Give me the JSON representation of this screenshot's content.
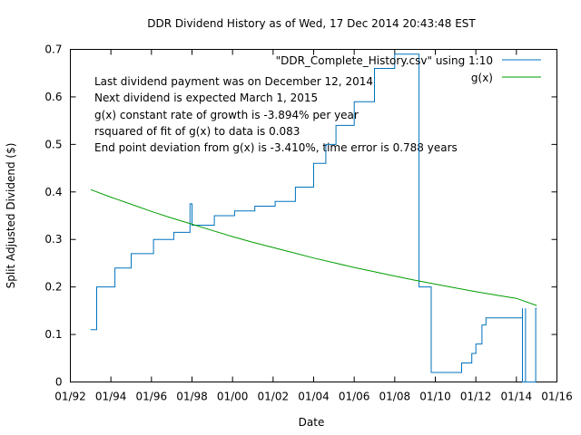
{
  "chart_data": {
    "type": "line",
    "title": "DDR Dividend History as of Wed, 17 Dec 2014 20:43:48 EST",
    "xlabel": "Date",
    "ylabel": "Split Adjusted Dividend ($)",
    "xlim": [
      1992.0,
      2016.0
    ],
    "ylim": [
      0,
      0.7
    ],
    "grid": false,
    "legend_placement": "top-right",
    "x_ticks": [
      {
        "value": 1992,
        "label": "01/92"
      },
      {
        "value": 1994,
        "label": "01/94"
      },
      {
        "value": 1996,
        "label": "01/96"
      },
      {
        "value": 1998,
        "label": "01/98"
      },
      {
        "value": 2000,
        "label": "01/00"
      },
      {
        "value": 2002,
        "label": "01/02"
      },
      {
        "value": 2004,
        "label": "01/04"
      },
      {
        "value": 2006,
        "label": "01/06"
      },
      {
        "value": 2008,
        "label": "01/08"
      },
      {
        "value": 2010,
        "label": "01/10"
      },
      {
        "value": 2012,
        "label": "01/12"
      },
      {
        "value": 2014,
        "label": "01/14"
      },
      {
        "value": 2016,
        "label": "01/16"
      }
    ],
    "y_ticks": [
      {
        "value": 0,
        "label": "0"
      },
      {
        "value": 0.1,
        "label": "0.1"
      },
      {
        "value": 0.2,
        "label": "0.2"
      },
      {
        "value": 0.3,
        "label": "0.3"
      },
      {
        "value": 0.4,
        "label": "0.4"
      },
      {
        "value": 0.5,
        "label": "0.5"
      },
      {
        "value": 0.6,
        "label": "0.6"
      },
      {
        "value": 0.7,
        "label": "0.7"
      }
    ],
    "annotations": [
      "Last dividend payment was on December 12, 2014",
      "Next dividend is expected March 1, 2015",
      "g(x) constant rate of growth is -3.894% per year",
      "rsquared of fit of g(x) to data is  0.083",
      "End point deviation from g(x) is   -3.410%, time error is     0.788 years"
    ],
    "series": [
      {
        "name": "\"DDR_Complete_History.csv\" using 1:10",
        "color": "#0072bd",
        "style": "steps",
        "points": [
          [
            1993.0,
            0.11
          ],
          [
            1993.3,
            0.11
          ],
          [
            1993.3,
            0.2
          ],
          [
            1994.2,
            0.2
          ],
          [
            1994.2,
            0.24
          ],
          [
            1995.0,
            0.24
          ],
          [
            1995.0,
            0.27
          ],
          [
            1996.1,
            0.27
          ],
          [
            1996.1,
            0.3
          ],
          [
            1997.1,
            0.3
          ],
          [
            1997.1,
            0.315
          ],
          [
            1997.9,
            0.315
          ],
          [
            1997.9,
            0.375
          ],
          [
            1998.0,
            0.375
          ],
          [
            1998.0,
            0.33
          ],
          [
            1999.1,
            0.33
          ],
          [
            1999.1,
            0.35
          ],
          [
            2000.1,
            0.35
          ],
          [
            2000.1,
            0.36
          ],
          [
            2001.1,
            0.36
          ],
          [
            2001.1,
            0.37
          ],
          [
            2002.1,
            0.37
          ],
          [
            2002.1,
            0.38
          ],
          [
            2003.1,
            0.38
          ],
          [
            2003.1,
            0.41
          ],
          [
            2004.0,
            0.41
          ],
          [
            2004.0,
            0.46
          ],
          [
            2004.6,
            0.46
          ],
          [
            2004.6,
            0.5
          ],
          [
            2005.1,
            0.5
          ],
          [
            2005.1,
            0.54
          ],
          [
            2006.0,
            0.54
          ],
          [
            2006.0,
            0.59
          ],
          [
            2007.0,
            0.59
          ],
          [
            2007.0,
            0.66
          ],
          [
            2008.0,
            0.66
          ],
          [
            2008.0,
            0.69
          ],
          [
            2009.2,
            0.69
          ],
          [
            2009.2,
            0.2
          ],
          [
            2009.8,
            0.2
          ],
          [
            2009.8,
            0.02
          ],
          [
            2011.3,
            0.02
          ],
          [
            2011.3,
            0.04
          ],
          [
            2011.8,
            0.04
          ],
          [
            2011.8,
            0.06
          ],
          [
            2012.0,
            0.06
          ],
          [
            2012.0,
            0.08
          ],
          [
            2012.3,
            0.08
          ],
          [
            2012.3,
            0.12
          ],
          [
            2012.5,
            0.12
          ],
          [
            2012.5,
            0.135
          ],
          [
            2014.3,
            0.135
          ],
          [
            2014.3,
            0.155
          ],
          [
            2014.3,
            0.0
          ],
          [
            2014.45,
            0.0
          ],
          [
            2014.45,
            0.155
          ],
          [
            2014.45,
            0.0
          ],
          [
            2014.95,
            0.0
          ],
          [
            2014.95,
            0.155
          ],
          [
            2015.0,
            0.155
          ]
        ]
      },
      {
        "name": "g(x)",
        "color": "#009e00",
        "style": "lines",
        "points": [
          [
            1993.0,
            0.405
          ],
          [
            1994.0,
            0.389
          ],
          [
            1995.0,
            0.374
          ],
          [
            1996.0,
            0.359
          ],
          [
            1997.0,
            0.345
          ],
          [
            1998.0,
            0.332
          ],
          [
            1999.0,
            0.319
          ],
          [
            2000.0,
            0.306
          ],
          [
            2001.0,
            0.294
          ],
          [
            2002.0,
            0.283
          ],
          [
            2003.0,
            0.272
          ],
          [
            2004.0,
            0.261
          ],
          [
            2005.0,
            0.251
          ],
          [
            2006.0,
            0.241
          ],
          [
            2007.0,
            0.232
          ],
          [
            2008.0,
            0.223
          ],
          [
            2009.0,
            0.214
          ],
          [
            2010.0,
            0.206
          ],
          [
            2011.0,
            0.198
          ],
          [
            2012.0,
            0.19
          ],
          [
            2013.0,
            0.183
          ],
          [
            2014.0,
            0.176
          ],
          [
            2015.0,
            0.161
          ]
        ]
      }
    ]
  }
}
